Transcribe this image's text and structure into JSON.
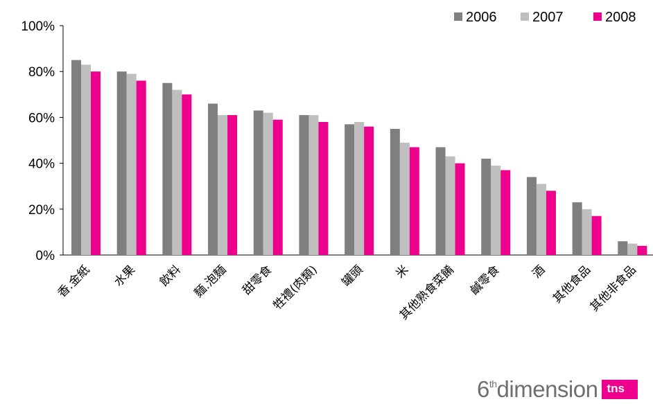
{
  "chart_data": {
    "type": "bar",
    "categories": [
      "香.金紙",
      "水果",
      "飲料",
      "麵.泡麵",
      "甜零食",
      "牲禮(肉類)",
      "罐頭",
      "米",
      "其他熟食菜餚",
      "鹹零食",
      "酒",
      "其他食品",
      "其他非食品"
    ],
    "series": [
      {
        "name": "2006",
        "color": "#7f7f7f",
        "values": [
          85,
          80,
          75,
          66,
          63,
          61,
          57,
          55,
          47,
          42,
          34,
          23,
          6
        ]
      },
      {
        "name": "2007",
        "color": "#bfbfbf",
        "values": [
          83,
          79,
          72,
          61,
          62,
          61,
          58,
          49,
          43,
          39,
          31,
          20,
          5
        ]
      },
      {
        "name": "2008",
        "color": "#ec008c",
        "values": [
          80,
          76,
          70,
          61,
          59,
          58,
          56,
          47,
          40,
          37,
          28,
          17,
          4
        ]
      }
    ],
    "ylim": [
      0,
      100
    ],
    "yticks": [
      "0%",
      "20%",
      "40%",
      "60%",
      "80%",
      "100%"
    ],
    "legend": "top-right",
    "grid": false
  },
  "brand": {
    "prefix": "6",
    "sup": "th",
    "name": "dimension",
    "logo": "tns"
  }
}
